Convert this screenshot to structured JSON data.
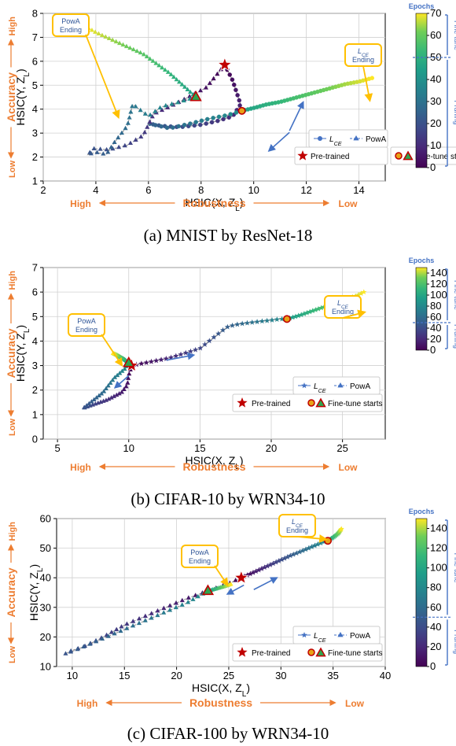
{
  "panels": [
    {
      "caption": "(a) MNIST by ResNet-18",
      "xlabel": "HSIC(X, Z_L)",
      "ylabel": "HSIC(Y, Z_L)",
      "robustness_label": "Robustness",
      "robustness_high": "High",
      "robustness_low": "Low",
      "accuracy_label": "Accuracy",
      "accuracy_high": "High",
      "accuracy_low": "Low",
      "colorbar_title": "Epochs",
      "finetune_label": "Fine-tune",
      "pruning_label": "Pruning",
      "legend": [
        "L_CE",
        "PowA"
      ],
      "legend2": [
        "Pre-trained",
        "Fine-tune starts"
      ],
      "annotations": [
        {
          "line1": "PowA",
          "line2": "Ending"
        },
        {
          "line1": "L_CE",
          "line2": "Ending"
        }
      ],
      "chart_data": {
        "type": "scatter",
        "xlim": [
          2,
          15
        ],
        "ylim": [
          1,
          8
        ],
        "xticks": [
          "2",
          "4",
          "6",
          "8",
          "10",
          "12",
          "14"
        ],
        "yticks": [
          "1",
          "2",
          "3",
          "4",
          "5",
          "6",
          "7",
          "8"
        ],
        "colorbar": {
          "min": 0,
          "max": 70,
          "ticks": [
            "0",
            "10",
            "20",
            "30",
            "40",
            "50",
            "60",
            "70"
          ],
          "split": 50
        },
        "pretrained": [
          8.9,
          5.85
        ],
        "finetune_start": {
          "L_CE": [
            9.55,
            3.93
          ],
          "PowA": [
            7.8,
            4.5
          ]
        },
        "series": [
          {
            "name": "L_CE",
            "marker": "circle",
            "pruning": [
              [
                8.9,
                5.85
              ],
              [
                9.2,
                5.2
              ],
              [
                9.5,
                4.2
              ],
              [
                9.2,
                3.7
              ],
              [
                8.6,
                3.5
              ],
              [
                8.0,
                3.35
              ],
              [
                7.2,
                3.25
              ],
              [
                6.5,
                3.3
              ],
              [
                6.0,
                3.4
              ],
              [
                6.8,
                3.2
              ],
              [
                7.6,
                3.4
              ],
              [
                8.3,
                3.6
              ],
              [
                9.0,
                3.75
              ],
              [
                9.55,
                3.93
              ]
            ],
            "finetune": [
              [
                9.55,
                3.93
              ],
              [
                10.0,
                4.05
              ],
              [
                10.5,
                4.2
              ],
              [
                11.0,
                4.3
              ],
              [
                11.5,
                4.45
              ],
              [
                12.0,
                4.6
              ],
              [
                12.5,
                4.75
              ],
              [
                13.0,
                4.9
              ],
              [
                13.5,
                5.05
              ],
              [
                14.0,
                5.15
              ],
              [
                14.5,
                5.3
              ]
            ]
          },
          {
            "name": "PowA",
            "marker": "triangle",
            "pruning": [
              [
                8.9,
                5.85
              ],
              [
                8.2,
                4.9
              ],
              [
                7.0,
                4.2
              ],
              [
                6.2,
                3.8
              ],
              [
                5.8,
                2.9
              ],
              [
                5.2,
                2.5
              ],
              [
                4.5,
                2.3
              ],
              [
                3.9,
                2.35
              ],
              [
                3.7,
                2.1
              ],
              [
                4.0,
                2.2
              ],
              [
                4.4,
                2.1
              ],
              [
                4.7,
                2.6
              ],
              [
                5.2,
                3.3
              ],
              [
                5.4,
                4.2
              ],
              [
                6.0,
                3.7
              ],
              [
                6.5,
                4.1
              ],
              [
                7.2,
                4.3
              ],
              [
                7.8,
                4.5
              ]
            ],
            "finetune": [
              [
                7.8,
                4.5
              ],
              [
                7.3,
                5.0
              ],
              [
                6.8,
                5.5
              ],
              [
                6.3,
                5.9
              ],
              [
                5.8,
                6.3
              ],
              [
                5.2,
                6.6
              ],
              [
                4.6,
                6.9
              ],
              [
                4.0,
                7.2
              ],
              [
                3.6,
                7.45
              ]
            ]
          }
        ]
      }
    },
    {
      "caption": "(b) CIFAR-10 by WRN34-10",
      "xlabel": "HSIC(X, Z_L)",
      "ylabel": "HSIC(Y, Z_L)",
      "robustness_label": "Robustness",
      "robustness_high": "High",
      "robustness_low": "Low",
      "accuracy_label": "Accuracy",
      "accuracy_high": "High",
      "accuracy_low": "Low",
      "colorbar_title": "Epochs",
      "finetune_label": "Fine-tune",
      "pruning_label": "Pruning",
      "legend": [
        "L_CE",
        "PowA"
      ],
      "legend2": [
        "Pre-trained",
        "Fine-tune starts"
      ],
      "annotations": [
        {
          "line1": "PowA",
          "line2": "Ending"
        },
        {
          "line1": "L_CE",
          "line2": "Ending"
        }
      ],
      "chart_data": {
        "type": "scatter",
        "xlim": [
          4,
          28
        ],
        "ylim": [
          0,
          7
        ],
        "xticks": [
          "5",
          "10",
          "15",
          "20",
          "25"
        ],
        "yticks": [
          "0",
          "1",
          "2",
          "3",
          "4",
          "5",
          "6",
          "7"
        ],
        "colorbar": {
          "min": 0,
          "max": 150,
          "ticks": [
            "0",
            "20",
            "40",
            "60",
            "80",
            "100",
            "120",
            "140"
          ],
          "split": 50
        },
        "pretrained": [
          10.2,
          3.0
        ],
        "finetune_start": {
          "L_CE": [
            21.1,
            4.9
          ],
          "PowA": [
            10.0,
            3.1
          ]
        },
        "series": [
          {
            "name": "L_CE",
            "marker": "star",
            "pruning": [
              [
                10.2,
                3.0
              ],
              [
                12.8,
                3.3
              ],
              [
                15.0,
                3.7
              ],
              [
                16.5,
                4.4
              ],
              [
                17.0,
                4.6
              ],
              [
                17.8,
                4.7
              ],
              [
                18.5,
                4.75
              ],
              [
                19.2,
                4.8
              ],
              [
                20.0,
                4.85
              ],
              [
                20.6,
                4.9
              ],
              [
                21.1,
                4.9
              ]
            ],
            "finetune": [
              [
                21.1,
                4.9
              ],
              [
                22.0,
                5.05
              ],
              [
                23.0,
                5.25
              ],
              [
                24.0,
                5.45
              ],
              [
                25.0,
                5.65
              ],
              [
                26.0,
                5.85
              ],
              [
                26.5,
                6.0
              ]
            ]
          },
          {
            "name": "PowA",
            "marker": "triangle",
            "pruning": [
              [
                10.2,
                3.0
              ],
              [
                10.0,
                2.6
              ],
              [
                9.9,
                2.2
              ],
              [
                9.5,
                1.9
              ],
              [
                9.0,
                1.75
              ],
              [
                8.5,
                1.6
              ],
              [
                8.0,
                1.5
              ],
              [
                7.5,
                1.4
              ],
              [
                7.0,
                1.3
              ],
              [
                6.8,
                1.25
              ],
              [
                8.2,
                1.9
              ],
              [
                9.0,
                2.5
              ],
              [
                9.8,
                2.9
              ],
              [
                10.0,
                3.1
              ]
            ],
            "finetune": [
              [
                10.0,
                3.1
              ],
              [
                9.7,
                3.25
              ],
              [
                9.4,
                3.35
              ],
              [
                9.1,
                3.45
              ],
              [
                8.9,
                3.5
              ]
            ]
          }
        ]
      }
    },
    {
      "caption": "(c) CIFAR-100 by WRN34-10",
      "xlabel": "HSIC(X, Z_L)",
      "ylabel": "HSIC(Y, Z_L)",
      "robustness_label": "Robustness",
      "robustness_high": "High",
      "robustness_low": "Low",
      "accuracy_label": "Accuracy",
      "accuracy_high": "High",
      "accuracy_low": "Low",
      "colorbar_title": "Epochs",
      "finetune_label": "Fine-tune",
      "pruning_label": "Pruning",
      "legend": [
        "L_CE",
        "PowA"
      ],
      "legend2": [
        "Pre-trained",
        "Fine-tune starts"
      ],
      "annotations": [
        {
          "line1": "PowA",
          "line2": "Ending"
        },
        {
          "line1": "L_CE",
          "line2": "Ending"
        }
      ],
      "chart_data": {
        "type": "scatter",
        "xlim": [
          8.5,
          40
        ],
        "ylim": [
          10,
          60
        ],
        "xticks": [
          "10",
          "15",
          "20",
          "25",
          "30",
          "35",
          "40"
        ],
        "yticks": [
          "10",
          "20",
          "30",
          "40",
          "50",
          "60"
        ],
        "colorbar": {
          "min": 0,
          "max": 150,
          "ticks": [
            "0",
            "20",
            "40",
            "60",
            "80",
            "100",
            "120",
            "140"
          ],
          "split": 50
        },
        "pretrained": [
          26.2,
          40.0
        ],
        "finetune_start": {
          "L_CE": [
            34.5,
            52.5
          ],
          "PowA": [
            23.0,
            35.5
          ]
        },
        "series": [
          {
            "name": "L_CE",
            "marker": "star",
            "pruning": [
              [
                26.2,
                40.0
              ],
              [
                27.0,
                41.2
              ],
              [
                28.0,
                42.8
              ],
              [
                29.0,
                44.4
              ],
              [
                30.0,
                46.0
              ],
              [
                31.0,
                47.6
              ],
              [
                32.0,
                49.0
              ],
              [
                33.0,
                50.5
              ],
              [
                34.0,
                52.0
              ],
              [
                34.5,
                52.5
              ]
            ],
            "finetune": [
              [
                34.5,
                52.5
              ],
              [
                35.0,
                53.6
              ],
              [
                35.5,
                55.0
              ],
              [
                35.8,
                56.5
              ]
            ]
          },
          {
            "name": "PowA",
            "marker": "triangle",
            "pruning": [
              [
                26.2,
                40.0
              ],
              [
                25.0,
                38.0
              ],
              [
                24.0,
                36.8
              ],
              [
                23.0,
                35.5
              ],
              [
                21.0,
                33.0
              ],
              [
                19.0,
                30.0
              ],
              [
                17.0,
                27.0
              ],
              [
                15.0,
                24.0
              ],
              [
                13.0,
                20.0
              ],
              [
                11.0,
                16.5
              ],
              [
                10.0,
                15.5
              ],
              [
                9.3,
                14.2
              ],
              [
                10.5,
                15.8
              ],
              [
                12.0,
                18.0
              ],
              [
                15.0,
                22.5
              ],
              [
                18.0,
                27.0
              ],
              [
                21.0,
                31.5
              ],
              [
                23.0,
                35.5
              ]
            ],
            "finetune": [
              [
                23.0,
                35.5
              ],
              [
                23.8,
                36.3
              ],
              [
                24.5,
                37.0
              ],
              [
                25.2,
                37.8
              ]
            ]
          }
        ]
      }
    }
  ]
}
